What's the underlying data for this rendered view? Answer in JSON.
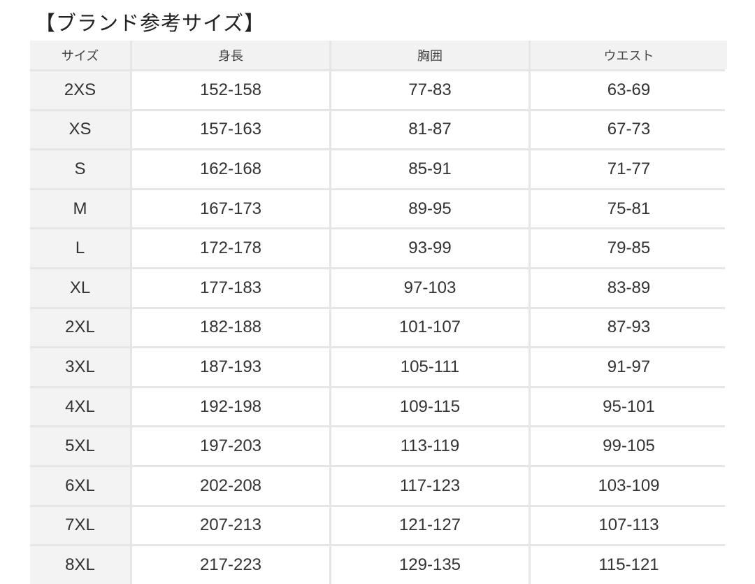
{
  "title": "【ブランド参考サイズ】",
  "table": {
    "headers": [
      "サイズ",
      "身長",
      "胸囲",
      "ウエスト"
    ],
    "rows": [
      [
        "2XS",
        "152-158",
        "77-83",
        "63-69"
      ],
      [
        "XS",
        "157-163",
        "81-87",
        "67-73"
      ],
      [
        "S",
        "162-168",
        "85-91",
        "71-77"
      ],
      [
        "M",
        "167-173",
        "89-95",
        "75-81"
      ],
      [
        "L",
        "172-178",
        "93-99",
        "79-85"
      ],
      [
        "XL",
        "177-183",
        "97-103",
        "83-89"
      ],
      [
        "2XL",
        "182-188",
        "101-107",
        "87-93"
      ],
      [
        "3XL",
        "187-193",
        "105-111",
        "91-97"
      ],
      [
        "4XL",
        "192-198",
        "109-115",
        "95-101"
      ],
      [
        "5XL",
        "197-203",
        "113-119",
        "99-105"
      ],
      [
        "6XL",
        "202-208",
        "117-123",
        "103-109"
      ],
      [
        "7XL",
        "207-213",
        "121-127",
        "107-113"
      ],
      [
        "8XL",
        "217-223",
        "129-135",
        "115-121"
      ]
    ]
  }
}
